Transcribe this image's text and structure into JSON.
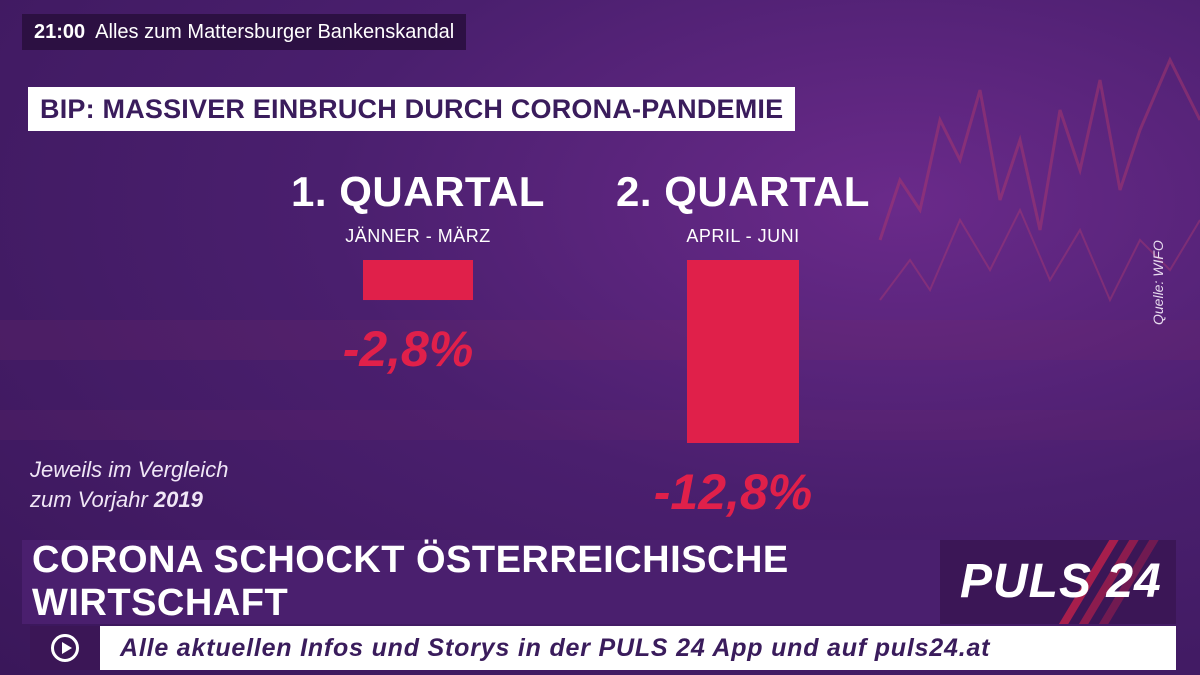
{
  "ticker": {
    "time": "21:00",
    "text": "Alles zum Mattersburger Bankenskandal"
  },
  "headline": "BIP: MASSIVER EINBRUCH DURCH CORONA-PANDEMIE",
  "chart_data": {
    "type": "bar",
    "title": "BIP: MASSIVER EINBRUCH DURCH CORONA-PANDEMIE",
    "categories": [
      "1. QUARTAL",
      "2. QUARTAL"
    ],
    "subcategories": [
      "JÄNNER - MÄRZ",
      "APRIL - JUNI"
    ],
    "values": [
      -2.8,
      -12.8
    ],
    "value_labels": [
      "-2,8%",
      "-12,8%"
    ],
    "ylim": [
      -12.8,
      0
    ],
    "grid": false,
    "bar_color": "#e0204a"
  },
  "note": {
    "line1": "Jeweils im Vergleich",
    "line2_prefix": "zum Vorjahr",
    "line2_year": "2019"
  },
  "source": "Quelle: WIFO",
  "lower_third": "CORONA SCHOCKT ÖSTERREICHISCHE WIRTSCHAFT",
  "logo": "PULS 24",
  "bottom_ticker": "Alle aktuellen Infos und Storys in der PULS 24 App und auf puls24.at",
  "colors": {
    "purple": "#4a1f6e",
    "accent_red": "#e0204a",
    "white": "#ffffff"
  }
}
